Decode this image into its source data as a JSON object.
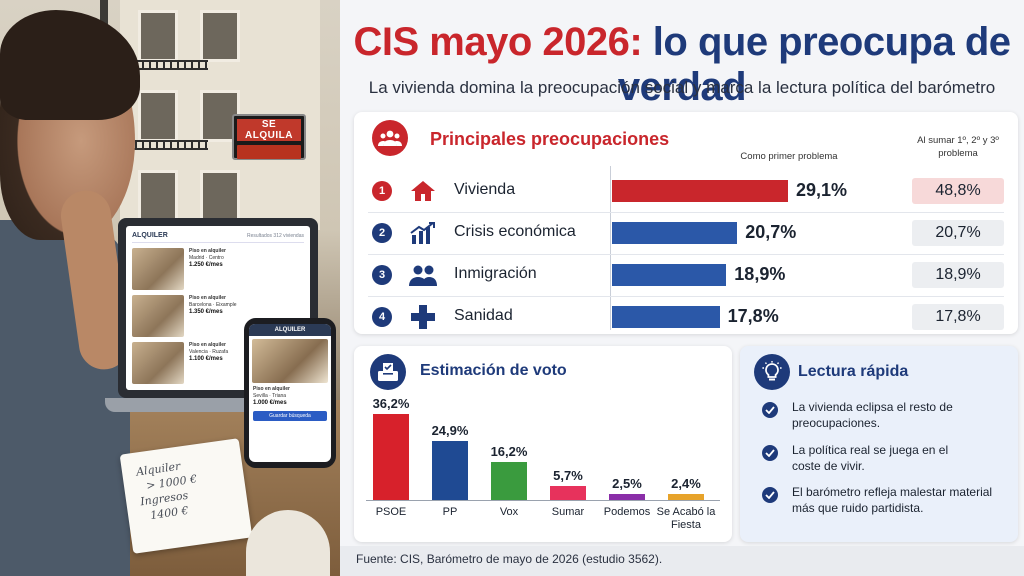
{
  "header": {
    "title_accent": "CIS mayo 2026:",
    "title_rest": "lo que preocupa de verdad",
    "subtitle": "La vivienda domina la preocupación social y marca la lectura política del barómetro"
  },
  "photo": {
    "sign_text": "SE ALQUILA",
    "laptop": {
      "brand": "ALQUILER",
      "results": "Resultados 312 viviendas",
      "listings": [
        {
          "title": "Piso en alquiler",
          "location": "Madrid · Centro",
          "price": "1.250 €/mes"
        },
        {
          "title": "Piso en alquiler",
          "location": "Barcelona · Eixample",
          "price": "1.350 €/mes"
        },
        {
          "title": "Piso en alquiler",
          "location": "Valencia · Ruzafa",
          "price": "1.100 €/mes"
        }
      ]
    },
    "phone": {
      "brand": "ALQUILER",
      "title": "Piso en alquiler",
      "location": "Sevilla · Triana",
      "price": "1.000 €/mes",
      "button": "Guardar búsqueda"
    },
    "note_lines": [
      "Alquiler",
      "> 1000 €",
      "Ingresos",
      "1400 €"
    ]
  },
  "concerns": {
    "title": "Principales preocupaciones",
    "col_first": "Como primer problema",
    "col_sum": "Al sumar 1º, 2º y 3º problema",
    "accent_color": "#c9262c",
    "secondary_color": "#2b58a8",
    "highlight_bg": "#f7d9d9"
  },
  "vote": {
    "title": "Estimación de voto",
    "primary_color": "#1e3a7a"
  },
  "quick": {
    "title": "Lectura rápida",
    "items": [
      "La vivienda eclipsa el resto de preocupaciones.",
      "La política real se juega en el coste de vivir.",
      "El barómetro refleja malestar material más que ruido partidista."
    ]
  },
  "footer": {
    "source": "Fuente: CIS, Barómetro de mayo de 2026 (estudio 3562)."
  },
  "chart_data": [
    {
      "type": "bar",
      "orientation": "horizontal",
      "title": "Principales preocupaciones",
      "categories": [
        "Vivienda",
        "Crisis económica",
        "Inmigración",
        "Sanidad"
      ],
      "ranks": [
        "1",
        "2",
        "3",
        "4"
      ],
      "icons": [
        "house-icon",
        "chart-growth-icon",
        "people-icon",
        "medical-cross-icon"
      ],
      "series": [
        {
          "name": "Como primer problema",
          "values": [
            29.1,
            20.7,
            18.9,
            17.8
          ],
          "labels": [
            "29,1%",
            "20,7%",
            "18,9%",
            "17,8%"
          ]
        },
        {
          "name": "Al sumar 1º, 2º y 3º problema",
          "values": [
            48.8,
            20.7,
            18.9,
            17.8
          ],
          "labels": [
            "48,8%",
            "20,7%",
            "18,9%",
            "17,8%"
          ]
        }
      ]
    },
    {
      "type": "bar",
      "title": "Estimación de voto",
      "categories": [
        "PSOE",
        "PP",
        "Vox",
        "Sumar",
        "Podemos",
        "Se Acabó la Fiesta"
      ],
      "values": [
        36.2,
        24.9,
        16.2,
        5.7,
        2.5,
        2.4
      ],
      "labels": [
        "36,2%",
        "24,9%",
        "16,2%",
        "5,7%",
        "2,5%",
        "2,4%"
      ],
      "colors": [
        "#d7212b",
        "#1f4a93",
        "#3a9b3e",
        "#e7325c",
        "#8a2ea8",
        "#e7a32a"
      ]
    }
  ]
}
